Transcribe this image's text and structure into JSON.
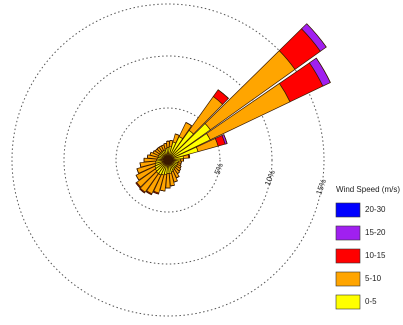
{
  "chart_data": {
    "type": "windrose",
    "legend_title": "Wind Speed (m/s)",
    "directions": [
      0,
      10,
      20,
      30,
      40,
      50,
      60,
      70,
      80,
      90,
      100,
      110,
      120,
      130,
      140,
      150,
      160,
      170,
      180,
      190,
      200,
      210,
      220,
      230,
      240,
      250,
      260,
      270,
      280,
      290,
      300,
      310,
      320,
      330,
      340,
      350
    ],
    "series": [
      {
        "name": "0-5",
        "color": "#ffff00",
        "values": [
          1.2,
          1.3,
          1.8,
          2.5,
          3.5,
          5,
          4.5,
          3,
          1.5,
          1.2,
          1,
          1,
          1,
          1,
          1,
          1.1,
          1.2,
          1.3,
          1.3,
          1.4,
          1.5,
          1.6,
          1.6,
          1.5,
          1.4,
          1.3,
          1.2,
          1.1,
          1,
          1,
          1,
          1,
          1,
          1,
          1,
          1.1
        ]
      },
      {
        "name": "5-10",
        "color": "#ffa500",
        "values": [
          0.6,
          0.6,
          0.8,
          1.5,
          4,
          10,
          8.5,
          2,
          0.5,
          0.3,
          0.3,
          0.3,
          0.4,
          0.5,
          0.6,
          0.8,
          1,
          1.2,
          1.4,
          1.6,
          1.8,
          2,
          2.2,
          2.2,
          2,
          1.8,
          1.5,
          1.2,
          1,
          0.8,
          0.6,
          0.5,
          0.5,
          0.5,
          0.5,
          0.5
        ]
      },
      {
        "name": "10-15",
        "color": "#ff0000",
        "values": [
          0,
          0,
          0,
          0,
          0.8,
          3,
          3.5,
          0.7,
          0.1,
          0,
          0,
          0,
          0,
          0,
          0,
          0,
          0,
          0,
          0,
          0,
          0.1,
          0.1,
          0.1,
          0.1,
          0,
          0,
          0,
          0,
          0,
          0,
          0,
          0,
          0,
          0,
          0,
          0
        ]
      },
      {
        "name": "15-20",
        "color": "#a020f0",
        "values": [
          0,
          0,
          0,
          0,
          0,
          0.7,
          0.8,
          0.2,
          0,
          0,
          0,
          0,
          0,
          0,
          0,
          0,
          0,
          0,
          0,
          0,
          0,
          0,
          0,
          0,
          0,
          0,
          0,
          0,
          0,
          0,
          0,
          0,
          0,
          0,
          0,
          0
        ]
      },
      {
        "name": "20-30",
        "color": "#0000ff",
        "values": [
          0,
          0,
          0,
          0,
          0,
          0,
          0,
          0,
          0,
          0,
          0,
          0,
          0,
          0,
          0,
          0,
          0,
          0,
          0,
          0,
          0,
          0,
          0,
          0,
          0,
          0,
          0,
          0,
          0,
          0,
          0,
          0,
          0,
          0,
          0,
          0
        ]
      }
    ],
    "rlim": [
      0,
      20
    ],
    "rticks": [
      {
        "value": 5,
        "label": "5%"
      },
      {
        "value": 10,
        "label": "10%"
      },
      {
        "value": 15,
        "label": "15%"
      }
    ],
    "grid": true
  }
}
